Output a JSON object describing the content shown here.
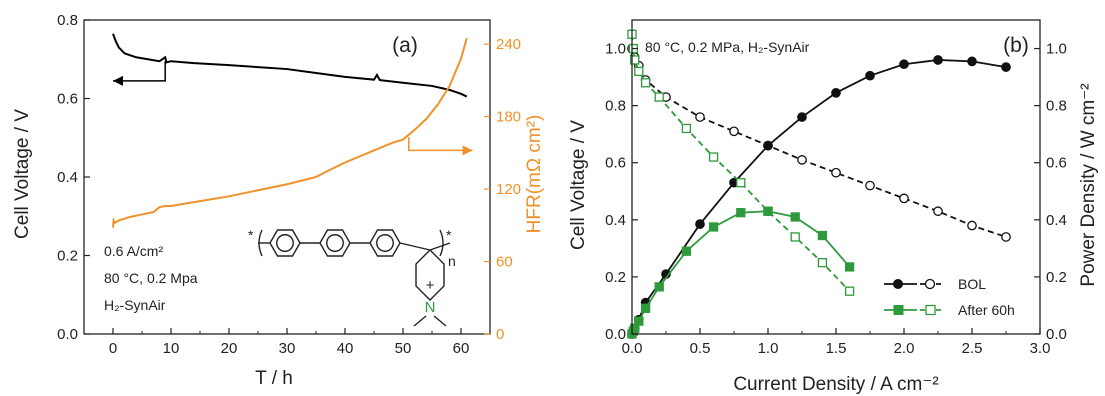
{
  "chart_data": [
    {
      "panel_label": "(a)",
      "type": "line",
      "xlabel": "T / h",
      "ylabel_left": "Cell Voltage / V",
      "ylabel_right": "HFR(mΩ cm²)",
      "xlim": [
        -5,
        65
      ],
      "ylim_left": [
        0,
        0.8
      ],
      "ylim_right": [
        0,
        260
      ],
      "xticks": [
        0,
        10,
        20,
        30,
        40,
        50,
        60
      ],
      "yticks_left": [
        0.0,
        0.2,
        0.4,
        0.6,
        0.8
      ],
      "yticks_right": [
        0,
        60,
        120,
        180,
        240
      ],
      "colors": {
        "voltage": "#000000",
        "hfr": "#f0922b"
      },
      "series": [
        {
          "axis": "left",
          "x": [
            0,
            0.5,
            1,
            2,
            4,
            6,
            8,
            9,
            9.2,
            10,
            14,
            20,
            25,
            30,
            35,
            40,
            45,
            45.5,
            46,
            50,
            55,
            58,
            60,
            61
          ],
          "values": [
            0.765,
            0.745,
            0.73,
            0.715,
            0.705,
            0.7,
            0.695,
            0.705,
            0.692,
            0.695,
            0.69,
            0.685,
            0.68,
            0.675,
            0.665,
            0.655,
            0.648,
            0.66,
            0.647,
            0.64,
            0.632,
            0.622,
            0.612,
            0.605
          ]
        },
        {
          "axis": "right",
          "x": [
            0,
            0.1,
            0.3,
            1,
            3,
            5,
            7,
            8,
            9,
            10,
            15,
            20,
            25,
            30,
            35,
            37,
            40,
            45,
            48,
            50,
            52,
            54,
            56,
            58,
            60,
            61
          ],
          "values": [
            88,
            94,
            92,
            94,
            97,
            99,
            101,
            105,
            106,
            106,
            110,
            114,
            119,
            124,
            130,
            135,
            142,
            152,
            158,
            161,
            169,
            178,
            190,
            205,
            228,
            245
          ]
        }
      ],
      "arrows": [
        {
          "axis": "left",
          "points": [
            [
              9,
              0.695
            ],
            [
              9,
              0.645
            ],
            [
              0,
              0.645
            ]
          ]
        },
        {
          "axis": "right",
          "points": [
            [
              51,
              163
            ],
            [
              51,
              152
            ],
            [
              62,
              152
            ]
          ]
        }
      ],
      "annotations": [
        "0.6 A/cm²",
        "80 °C, 0.2 Mpa",
        "H₂-SynAir"
      ],
      "structure": {
        "n_label": "n",
        "charge_label": "+",
        "atom_label": "N"
      }
    },
    {
      "panel_label": "(b)",
      "type": "line",
      "xlabel": "Current Density / A cm⁻²",
      "ylabel_left": "Cell Voltage / V",
      "ylabel_right": "Power Density / W cm⁻²",
      "xlim": [
        0,
        3.0
      ],
      "ylim_left": [
        0,
        1.1
      ],
      "ylim_right": [
        0,
        1.1
      ],
      "xticks": [
        0.0,
        0.5,
        1.0,
        1.5,
        2.0,
        2.5,
        3.0
      ],
      "yticks_left": [
        0.0,
        0.2,
        0.4,
        0.6,
        0.8,
        1.0
      ],
      "yticks_right": [
        0.0,
        0.2,
        0.4,
        0.6,
        0.8,
        1.0
      ],
      "title": "80 °C, 0.2 MPa, H₂-SynAir",
      "colors": {
        "bol": "#111111",
        "after": "#2e9a3c"
      },
      "series": [
        {
          "name": "BOL",
          "metric": "voltage",
          "style": {
            "fill": "none",
            "dash": true,
            "color": "#111111",
            "marker": "circle"
          },
          "x": [
            0.0,
            0.02,
            0.05,
            0.1,
            0.25,
            0.5,
            0.75,
            1.0,
            1.25,
            1.5,
            1.75,
            2.0,
            2.25,
            2.5,
            2.75
          ],
          "values": [
            1.0,
            0.97,
            0.94,
            0.89,
            0.83,
            0.76,
            0.71,
            0.66,
            0.61,
            0.565,
            0.52,
            0.475,
            0.43,
            0.38,
            0.34
          ]
        },
        {
          "name": "BOL",
          "metric": "power",
          "style": {
            "fill": "solid",
            "dash": false,
            "color": "#111111",
            "marker": "circle"
          },
          "x": [
            0.0,
            0.02,
            0.05,
            0.1,
            0.25,
            0.5,
            0.75,
            1.0,
            1.25,
            1.5,
            1.75,
            2.0,
            2.25,
            2.5,
            2.75
          ],
          "values": [
            0.0,
            0.02,
            0.05,
            0.11,
            0.21,
            0.385,
            0.53,
            0.66,
            0.76,
            0.845,
            0.905,
            0.945,
            0.96,
            0.955,
            0.935
          ]
        },
        {
          "name": "After 60h",
          "metric": "voltage",
          "style": {
            "fill": "none",
            "dash": true,
            "color": "#2e9a3c",
            "marker": "square"
          },
          "x": [
            0.0,
            0.01,
            0.02,
            0.05,
            0.1,
            0.2,
            0.4,
            0.6,
            0.8,
            1.0,
            1.2,
            1.4,
            1.6
          ],
          "values": [
            1.05,
            1.0,
            0.96,
            0.92,
            0.88,
            0.83,
            0.72,
            0.62,
            0.53,
            0.43,
            0.34,
            0.25,
            0.15
          ]
        },
        {
          "name": "After 60h",
          "metric": "power",
          "style": {
            "fill": "solid",
            "dash": false,
            "color": "#2e9a3c",
            "marker": "square"
          },
          "x": [
            0.0,
            0.01,
            0.02,
            0.05,
            0.1,
            0.2,
            0.4,
            0.6,
            0.8,
            1.0,
            1.2,
            1.4,
            1.6
          ],
          "values": [
            0.0,
            0.01,
            0.02,
            0.045,
            0.09,
            0.165,
            0.29,
            0.375,
            0.425,
            0.43,
            0.41,
            0.345,
            0.235
          ]
        }
      ],
      "legend": {
        "position": "bottom-right",
        "entries": [
          "BOL",
          "After 60h"
        ]
      }
    }
  ]
}
